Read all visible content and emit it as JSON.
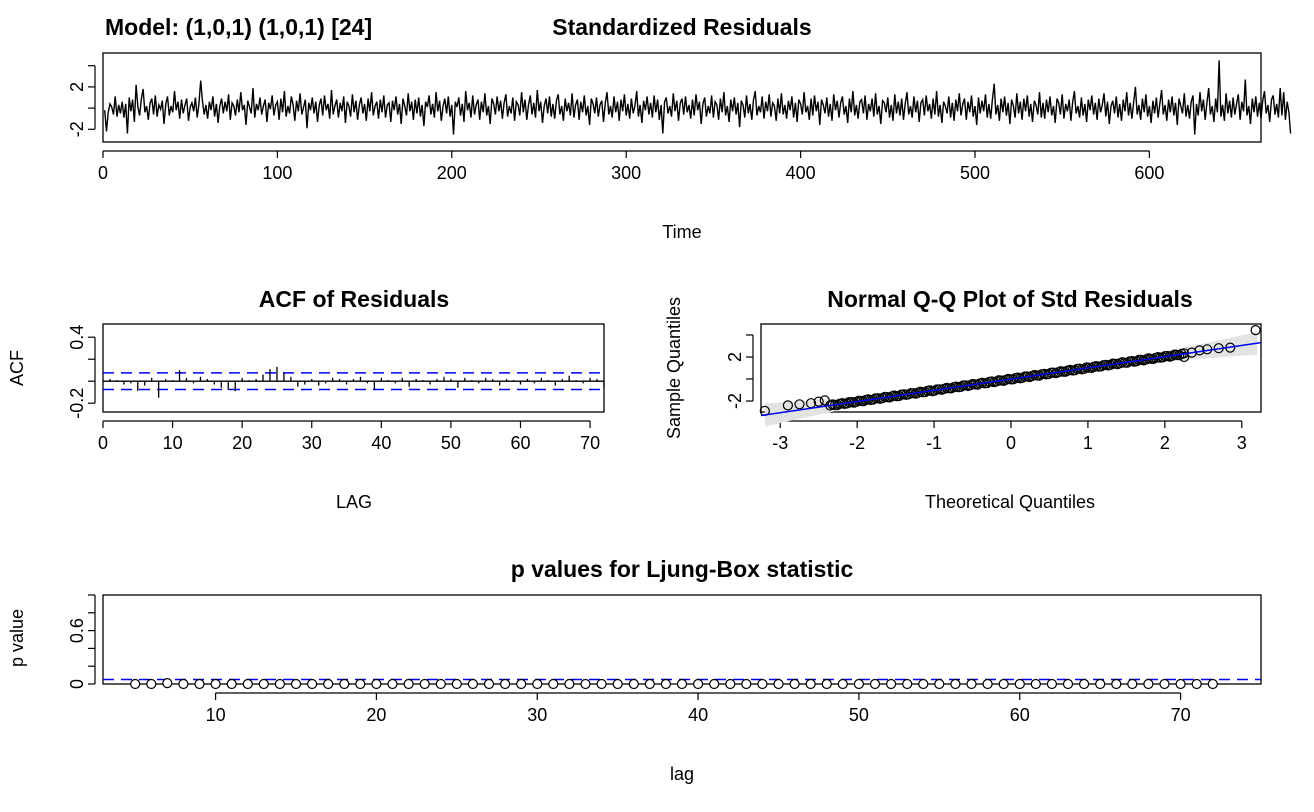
{
  "model_label": "Model: (1,0,1) (1,0,1) [24]",
  "chart_data": [
    {
      "type": "line",
      "title": "Standardized Residuals",
      "xlabel": "Time",
      "ylabel": "",
      "xlim": [
        0,
        664
      ],
      "ylim": [
        -3.2,
        5.2
      ],
      "x_ticks": [
        0,
        100,
        200,
        300,
        400,
        500,
        600
      ],
      "y_ticks": [
        -2,
        2
      ],
      "series": [
        {
          "values": [
            -0.2,
            -2.2,
            -0.4,
            0.4,
            0.1,
            -0.6,
            1.1,
            -0.8,
            0.3,
            -0.5,
            0.6,
            -0.9,
            0.4,
            -2.4,
            1.0,
            -0.3,
            0.8,
            -1.3,
            2.2,
            0.1,
            -0.7,
            0.9,
            1.8,
            -0.4,
            0.2,
            -1.1,
            0.5,
            0.9,
            -0.6,
            1.2,
            -0.8,
            0.3,
            -0.1,
            0.7,
            -1.5,
            0.4,
            1.1,
            -0.7,
            0.2,
            -0.4,
            1.6,
            -0.2,
            0.6,
            -1.0,
            0.8,
            -0.5,
            0.3,
            0.9,
            -1.2,
            0.1,
            0.5,
            -0.3,
            1.0,
            -0.9,
            0.4,
            2.6,
            0.7,
            -0.6,
            0.3,
            -1.0,
            0.6,
            -0.2,
            1.1,
            -0.8,
            0.4,
            -1.4,
            0.2,
            0.9,
            -0.5,
            0.6,
            -0.3,
            1.3,
            -1.1,
            0.5,
            0.2,
            -0.7,
            0.8,
            -0.4,
            1.5,
            -0.2,
            0.3,
            -1.6,
            0.7,
            0.1,
            -0.5,
            1.9,
            -0.9,
            0.4,
            -0.2,
            1.0,
            -0.6,
            0.2,
            0.8,
            -1.3,
            0.5,
            -0.1,
            1.2,
            -0.7,
            0.3,
            0.6,
            -1.1,
            0.9,
            -0.4,
            1.6,
            -0.8,
            0.2,
            -0.5,
            1.1,
            0.3,
            -1.2,
            0.7,
            -0.3,
            1.4,
            -0.6,
            0.1,
            0.8,
            -1.9,
            0.5,
            -0.2,
            1.0,
            -0.5,
            0.6,
            -1.3,
            0.3,
            0.9,
            -0.7,
            1.2,
            -0.2,
            0.4,
            -1.0,
            1.7,
            -0.6,
            0.2,
            0.8,
            -0.9,
            0.5,
            -0.3,
            1.1,
            -1.4,
            0.6,
            0.2,
            -0.8,
            1.3,
            -0.4,
            0.7,
            -1.1,
            0.3,
            1.0,
            -0.5,
            0.4,
            -1.2,
            0.9,
            -0.3,
            1.5,
            -0.7,
            0.2,
            0.6,
            -1.0,
            0.8,
            -0.4,
            1.2,
            -0.9,
            0.3,
            0.5,
            -1.3,
            0.7,
            -0.2,
            1.1,
            -0.6,
            0.4,
            -1.5,
            0.9,
            0.2,
            -0.7,
            1.4,
            -0.3,
            0.6,
            -1.1,
            0.8,
            -0.5,
            1.0,
            -0.8,
            0.3,
            -1.7,
            0.6,
            0.1,
            1.2,
            -0.6,
            0.4,
            -0.9,
            1.5,
            -0.3,
            0.7,
            -1.2,
            0.2,
            0.9,
            -0.5,
            1.1,
            -0.8,
            0.3,
            -2.5,
            0.6,
            0.1,
            1.0,
            -0.7,
            0.4,
            -1.3,
            1.6,
            -0.2,
            0.5,
            -0.9,
            1.2,
            -0.6,
            0.3,
            0.8,
            -1.1,
            0.6,
            -0.4,
            1.4,
            -0.7,
            0.2,
            -1.5,
            0.9,
            0.4,
            -0.6,
            1.1,
            -0.3,
            0.7,
            -1.0,
            0.5,
            1.3,
            -0.8,
            0.2,
            -0.5,
            1.0,
            -1.2,
            0.6,
            0.3,
            -0.7,
            1.5,
            -0.4,
            0.8,
            -1.1,
            0.3,
            1.2,
            -0.6,
            0.5,
            -0.9,
            1.7,
            -0.3,
            0.6,
            -1.4,
            0.2,
            0.9,
            -0.5,
            1.1,
            -0.8,
            0.4,
            -1.0,
            0.7,
            1.3,
            -0.6,
            0.2,
            -1.2,
            0.9,
            -0.3,
            0.5,
            -0.7,
            1.4,
            -0.9,
            0.3,
            0.8,
            -1.1,
            0.6,
            -0.4,
            1.2,
            -0.7,
            0.2,
            -1.6,
            0.9,
            0.4,
            -0.5,
            1.0,
            -0.8,
            0.3,
            0.7,
            -1.3,
            0.5,
            1.5,
            -0.6,
            0.2,
            -0.9,
            1.1,
            -0.4,
            0.6,
            -1.2,
            0.8,
            -0.3,
            1.3,
            -0.7,
            0.4,
            -1.0,
            0.9,
            -0.5,
            0.2,
            1.6,
            -0.8,
            0.3,
            -1.4,
            0.7,
            -0.2,
            1.1,
            -0.6,
            0.5,
            -0.9,
            1.2,
            -0.4,
            0.8,
            -1.1,
            0.3,
            -2.4,
            0.6,
            1.0,
            -0.5,
            0.2,
            -0.8,
            1.4,
            -0.3,
            0.7,
            -1.2,
            0.5,
            0.9,
            -0.6,
            1.1,
            -0.4,
            0.3,
            -1.0,
            0.8,
            -0.7,
            1.3,
            -0.2,
            0.6,
            -1.5,
            0.4,
            1.0,
            -0.8,
            0.2,
            -0.5,
            1.2,
            -0.9,
            0.6,
            0.3,
            -1.1,
            0.9,
            -0.4,
            1.5,
            -0.7,
            0.2,
            -1.3,
            0.8,
            -0.3,
            1.0,
            -0.6,
            0.5,
            -1.8,
            0.7,
            0.3,
            -0.9,
            1.2,
            -0.5,
            0.4,
            -1.1,
            0.8,
            1.6,
            -0.7,
            0.2,
            -0.4,
            1.1,
            -1.0,
            0.6,
            -0.3,
            1.3,
            -0.8,
            0.5,
            0.2,
            -1.2,
            0.9,
            -0.5,
            1.4,
            -0.6,
            0.3,
            -1.0,
            0.7,
            -0.2,
            1.1,
            -0.9,
            0.5,
            -1.3,
            0.8,
            0.4,
            -0.6,
            1.5,
            -0.4,
            0.2,
            -1.1,
            0.9,
            -0.7,
            1.2,
            -0.3,
            0.6,
            -1.6,
            0.8,
            0.3,
            -0.5,
            1.0,
            -0.8,
            0.4,
            -1.2,
            1.3,
            -0.2,
            0.7,
            -0.9,
            0.5,
            1.1,
            -0.6,
            0.2,
            -1.4,
            0.9,
            -0.4,
            1.6,
            -0.7,
            0.3,
            -1.0,
            0.6,
            0.8,
            -0.5,
            1.2,
            -1.1,
            0.4,
            -0.3,
            0.9,
            -0.8,
            1.4,
            -0.6,
            0.2,
            -1.5,
            0.7,
            0.5,
            -0.4,
            1.0,
            -0.9,
            0.3,
            -1.2,
            1.3,
            -0.5,
            0.6,
            -0.7,
            0.9,
            -1.1,
            0.4,
            1.5,
            -0.6,
            0.2,
            -0.9,
            1.1,
            -0.4,
            0.7,
            -1.3,
            0.5,
            0.8,
            -0.7,
            1.2,
            -0.3,
            0.4,
            -1.0,
            0.9,
            -0.6,
            1.6,
            -0.8,
            0.3,
            -1.4,
            0.6,
            0.2,
            -0.5,
            1.1,
            -0.9,
            0.5,
            -1.2,
            0.8,
            -0.3,
            1.4,
            -0.7,
            0.4,
            0.9,
            -1.1,
            0.6,
            -0.4,
            1.2,
            -0.8,
            0.2,
            -1.6,
            1.0,
            -0.5,
            0.7,
            -0.3,
            1.3,
            -0.9,
            0.4,
            -1.0,
            0.8,
            2.3,
            -0.6,
            0.3,
            -1.2,
            0.9,
            -0.4,
            1.1,
            -0.7,
            0.5,
            -1.5,
            0.8,
            0.2,
            -0.9,
            1.4,
            -0.5,
            0.6,
            -1.1,
            0.9,
            -0.3,
            1.2,
            -0.8,
            0.4,
            -1.3,
            0.7,
            0.3,
            -0.6,
            1.5,
            -0.9,
            0.5,
            -1.0,
            0.8,
            -0.4,
            1.1,
            -0.7,
            0.2,
            -1.4,
            0.9,
            0.5,
            -0.6,
            1.3,
            -1.0,
            0.4,
            -0.3,
            0.8,
            -1.2,
            0.6,
            1.6,
            -0.5,
            0.2,
            -0.9,
            1.0,
            -0.7,
            0.4,
            -1.3,
            0.8,
            -0.2,
            1.2,
            -0.6,
            0.5,
            -1.1,
            0.9,
            -0.4,
            0.3,
            1.4,
            -0.8,
            0.6,
            -1.5,
            0.2,
            0.7,
            -0.5,
            1.1,
            -0.9,
            0.4,
            -1.2,
            0.8,
            -0.3,
            1.5,
            -0.7,
            0.5,
            -1.0,
            0.6,
            2.0,
            -0.6,
            0.3,
            -1.1,
            0.9,
            -0.4,
            1.3,
            -0.8,
            0.2,
            -1.4,
            0.7,
            -0.5,
            1.0,
            -0.9,
            0.4,
            1.7,
            -0.6,
            0.3,
            -1.2,
            0.8,
            -0.4,
            1.1,
            -0.7,
            0.5,
            -1.6,
            0.9,
            0.2,
            -0.5,
            1.4,
            -0.8,
            0.3,
            -1.0,
            0.6,
            1.2,
            -2.5,
            0.4,
            -0.7,
            1.5,
            -0.3,
            0.8,
            -1.1,
            0.5,
            1.9,
            -0.6,
            0.2,
            -1.3,
            0.9,
            -0.4,
            4.5,
            -0.8,
            0.3,
            -1.2,
            1.4,
            -0.5,
            0.7,
            -0.9,
            1.0,
            -0.6,
            0.4,
            1.3,
            -1.1,
            0.6,
            -0.3,
            2.7,
            -0.7,
            0.2,
            -1.5,
            0.9,
            -0.4,
            1.1,
            -0.8,
            0.5,
            -1.0,
            0.7,
            1.6,
            -0.5,
            0.3,
            -1.3,
            0.8,
            1.2,
            -0.6,
            0.4,
            -0.9,
            1.9,
            -0.7,
            1.5,
            -1.1,
            0.6,
            -0.4,
            -2.4
          ]
        }
      ]
    },
    {
      "type": "bar",
      "title": "ACF of Residuals",
      "xlabel": "LAG",
      "ylabel": "ACF",
      "xlim": [
        0,
        72
      ],
      "ylim": [
        -0.28,
        0.52
      ],
      "x_ticks": [
        0,
        10,
        20,
        30,
        40,
        50,
        60,
        70
      ],
      "y_ticks": [
        -0.2,
        0.4
      ],
      "ci": 0.076,
      "x": [
        1,
        2,
        3,
        4,
        5,
        6,
        7,
        8,
        9,
        10,
        11,
        12,
        13,
        14,
        15,
        16,
        17,
        18,
        19,
        20,
        21,
        22,
        23,
        24,
        25,
        26,
        27,
        28,
        29,
        30,
        31,
        32,
        33,
        34,
        35,
        36,
        37,
        38,
        39,
        40,
        41,
        42,
        43,
        44,
        45,
        46,
        47,
        48,
        49,
        50,
        51,
        52,
        53,
        54,
        55,
        56,
        57,
        58,
        59,
        60,
        61,
        62,
        63,
        64,
        65,
        66,
        67,
        68,
        69,
        70,
        71,
        72
      ],
      "values": [
        0.02,
        0.01,
        -0.03,
        -0.02,
        -0.09,
        -0.04,
        0.03,
        -0.15,
        0.02,
        0.01,
        0.1,
        0.03,
        -0.02,
        0.04,
        0.02,
        -0.03,
        -0.06,
        -0.08,
        -0.09,
        0.03,
        0.01,
        0.02,
        0.06,
        0.11,
        0.13,
        0.08,
        0.04,
        -0.05,
        -0.03,
        0.02,
        -0.04,
        -0.02,
        0.03,
        0.02,
        -0.03,
        0.02,
        0.04,
        -0.02,
        -0.07,
        0.03,
        0.01,
        -0.02,
        0.03,
        -0.05,
        0.02,
        0.01,
        -0.03,
        0.02,
        0.04,
        0.02,
        -0.06,
        0.03,
        0.01,
        -0.02,
        0.03,
        0.02,
        -0.04,
        0.02,
        0.01,
        -0.03,
        0.02,
        -0.02,
        0.03,
        0.01,
        -0.04,
        0.02,
        0.05,
        0.01,
        -0.02,
        0.03,
        0.02,
        -0.06
      ]
    },
    {
      "type": "scatter",
      "title": "Normal Q-Q Plot of Std Residuals",
      "xlabel": "Theoretical Quantiles",
      "ylabel": "Sample Quantiles",
      "xlim": [
        -3.25,
        3.25
      ],
      "ylim": [
        -3.0,
        5.0
      ],
      "x_ticks": [
        -3,
        -2,
        -1,
        0,
        1,
        2,
        3
      ],
      "y_ticks": [
        -2,
        2
      ],
      "reference_line": {
        "intercept": -0.01,
        "slope": 1.02
      },
      "outliers": [
        [
          -3.2,
          -2.9
        ],
        [
          -2.9,
          -2.4
        ],
        [
          -2.75,
          -2.3
        ],
        [
          -2.6,
          -2.2
        ],
        [
          -2.5,
          -2.05
        ],
        [
          -2.42,
          -1.95
        ],
        [
          2.25,
          2.0
        ],
        [
          2.35,
          2.4
        ],
        [
          2.45,
          2.6
        ],
        [
          2.55,
          2.7
        ],
        [
          2.7,
          2.8
        ],
        [
          2.85,
          2.85
        ],
        [
          3.18,
          4.45
        ]
      ]
    },
    {
      "type": "scatter",
      "title": "p values for Ljung-Box statistic",
      "xlabel": "lag",
      "ylabel": "p value",
      "xlim": [
        3,
        75
      ],
      "ylim": [
        0,
        1
      ],
      "x_ticks": [
        10,
        20,
        30,
        40,
        50,
        60,
        70
      ],
      "y_ticks": [
        0.0,
        0.6
      ],
      "threshold": 0.05,
      "x": [
        5,
        6,
        7,
        8,
        9,
        10,
        11,
        12,
        13,
        14,
        15,
        16,
        17,
        18,
        19,
        20,
        21,
        22,
        23,
        24,
        25,
        26,
        27,
        28,
        29,
        30,
        31,
        32,
        33,
        34,
        35,
        36,
        37,
        38,
        39,
        40,
        41,
        42,
        43,
        44,
        45,
        46,
        47,
        48,
        49,
        50,
        51,
        52,
        53,
        54,
        55,
        56,
        57,
        58,
        59,
        60,
        61,
        62,
        63,
        64,
        65,
        66,
        67,
        68,
        69,
        70,
        71,
        72
      ],
      "values": [
        0,
        0,
        0.01,
        0,
        0,
        0,
        0,
        0,
        0,
        0,
        0,
        0,
        0,
        0,
        0,
        0,
        0,
        0,
        0,
        0,
        0,
        0,
        0,
        0,
        0,
        0,
        0,
        0,
        0,
        0,
        0,
        0,
        0,
        0,
        0,
        0,
        0,
        0,
        0,
        0,
        0,
        0,
        0,
        0,
        0,
        0,
        0,
        0,
        0,
        0,
        0,
        0,
        0,
        0,
        0,
        0,
        0,
        0,
        0,
        0,
        0,
        0,
        0,
        0,
        0,
        0,
        0,
        0
      ]
    }
  ]
}
